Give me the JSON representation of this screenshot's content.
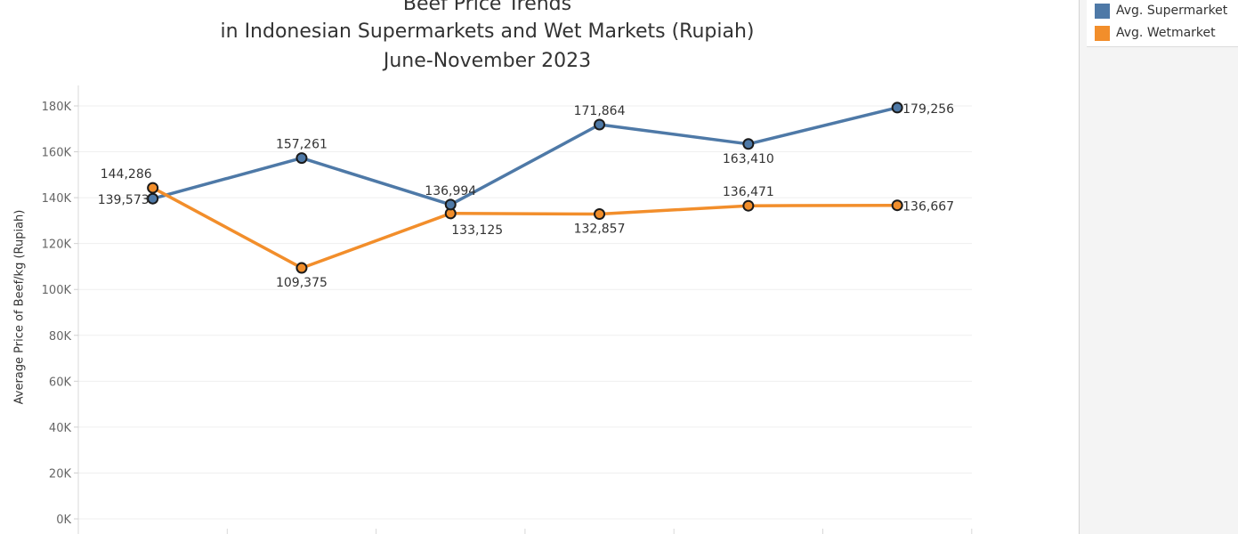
{
  "chart_data": {
    "type": "line",
    "title_lines": [
      "Beef Price Trends",
      "in Indonesian Supermarkets and Wet Markets (Rupiah)",
      "June-November 2023"
    ],
    "xlabel": "",
    "ylabel": "Average Price of Beef/kg (Rupiah)",
    "ylim": [
      0,
      190000
    ],
    "yticks": [
      0,
      20000,
      40000,
      60000,
      80000,
      100000,
      120000,
      140000,
      160000,
      180000
    ],
    "ytick_labels": [
      "0K",
      "20K",
      "40K",
      "60K",
      "80K",
      "100K",
      "120K",
      "140K",
      "160K",
      "180K"
    ],
    "x": [
      1,
      2,
      3,
      4,
      5,
      6
    ],
    "grid": true,
    "legend_position": "top-right",
    "series": [
      {
        "name": "Avg. Supermarket",
        "color": "#4e79a7",
        "values": [
          139573,
          157261,
          136994,
          171864,
          163410,
          179256
        ],
        "labels": [
          "139,573",
          "157,261",
          "136,994",
          "171,864",
          "163,410",
          "179,256"
        ],
        "label_positions": [
          "left",
          "above",
          "above",
          "above",
          "below",
          "right"
        ]
      },
      {
        "name": "Avg. Wetmarket",
        "color": "#f28e2b",
        "values": [
          144286,
          109375,
          133125,
          132857,
          136471,
          136667
        ],
        "labels": [
          "144,286",
          "109,375",
          "133,125",
          "132,857",
          "136,471",
          "136,667"
        ],
        "label_positions": [
          "above-left",
          "below",
          "below-right",
          "below",
          "above",
          "right"
        ]
      }
    ]
  }
}
